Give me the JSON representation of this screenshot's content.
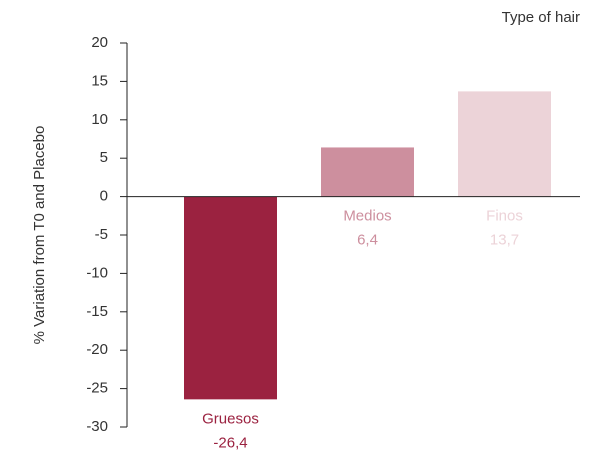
{
  "chart_data": {
    "type": "bar",
    "annotation": "Type of hair",
    "y_label": "% Variation from T0 and Placebo",
    "categories": [
      "Gruesos",
      "Medios",
      "Finos"
    ],
    "values": [
      -26.4,
      6.4,
      13.7
    ],
    "value_labels": [
      "-26,4",
      "6,4",
      "13,7"
    ],
    "colors": [
      "#9b2240",
      "#cd8f9e",
      "#ecd3d8"
    ],
    "ylim": [
      -30,
      20
    ],
    "yticks": [
      -30,
      -25,
      -20,
      -15,
      -10,
      -5,
      0,
      5,
      10,
      15,
      20
    ],
    "grid": false
  }
}
